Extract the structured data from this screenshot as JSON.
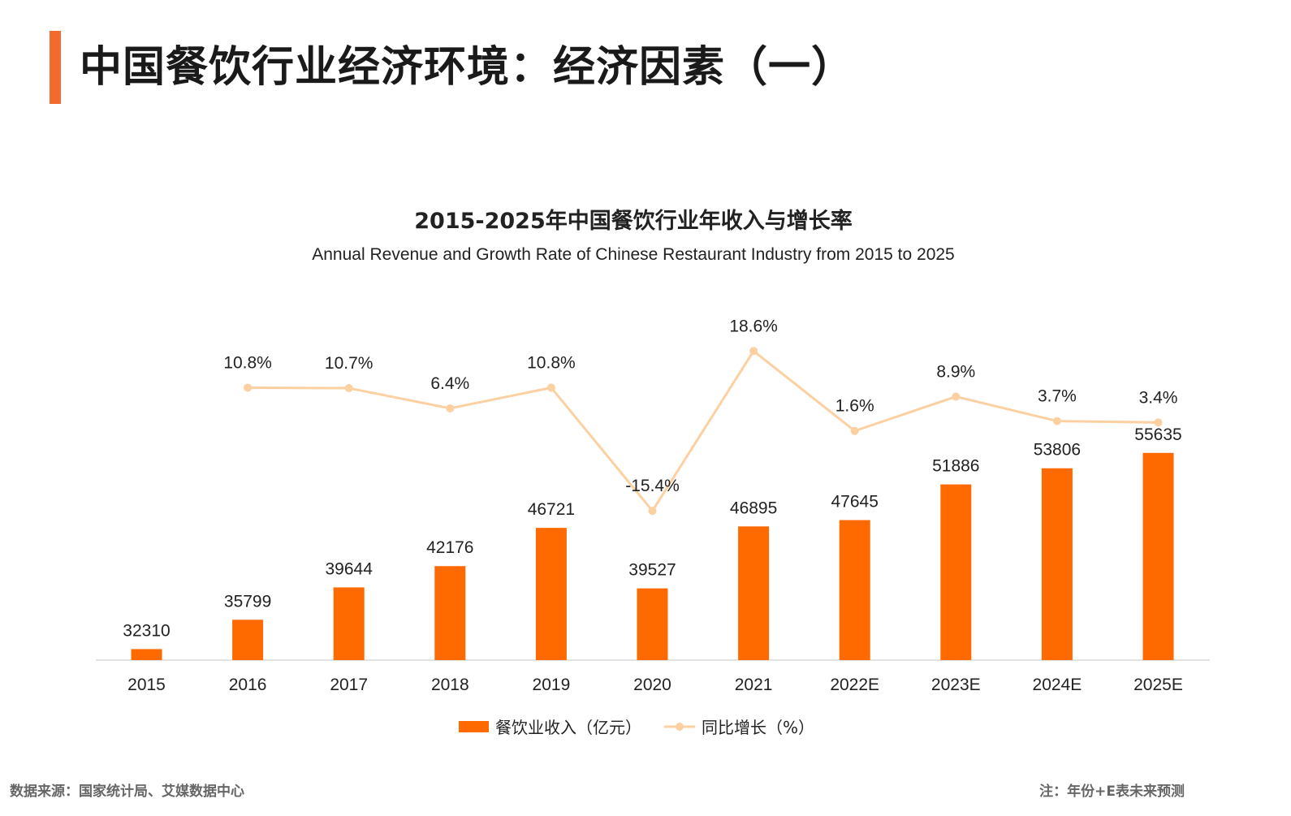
{
  "page": {
    "title": "中国餐饮行业经济环境：经济因素（一）",
    "source": "数据来源：国家统计局、艾媒数据中心",
    "note": "注：年份+E表未来预测"
  },
  "colors": {
    "accent": "#f26a2e",
    "bar": "#ff6a00",
    "line": "#fcd0a1"
  },
  "chart_data": {
    "type": "bar",
    "title": "2015-2025年中国餐饮行业年收入与增长率",
    "subtitle": "Annual Revenue and Growth Rate of Chinese Restaurant Industry from 2015 to 2025",
    "categories": [
      "2015",
      "2016",
      "2017",
      "2018",
      "2019",
      "2020",
      "2021",
      "2022E",
      "2023E",
      "2024E",
      "2025E"
    ],
    "series": [
      {
        "name": "餐饮业收入（亿元）",
        "type": "bar",
        "values": [
          32310,
          35799,
          39644,
          42176,
          46721,
          39527,
          46895,
          47645,
          51886,
          53806,
          55635
        ],
        "labels": [
          "32310",
          "35799",
          "39644",
          "42176",
          "46721",
          "39527",
          "46895",
          "47645",
          "51886",
          "53806",
          "55635"
        ]
      },
      {
        "name": "同比增长（%）",
        "type": "line",
        "values": [
          null,
          10.8,
          10.7,
          6.4,
          10.8,
          -15.4,
          18.6,
          1.6,
          8.9,
          3.7,
          3.4
        ],
        "labels": [
          "",
          "10.8%",
          "10.7%",
          "6.4%",
          "10.8%",
          "-15.4%",
          "18.6%",
          "1.6%",
          "8.9%",
          "3.7%",
          "3.4%"
        ]
      }
    ],
    "legend_position": "bottom",
    "grid": false
  }
}
